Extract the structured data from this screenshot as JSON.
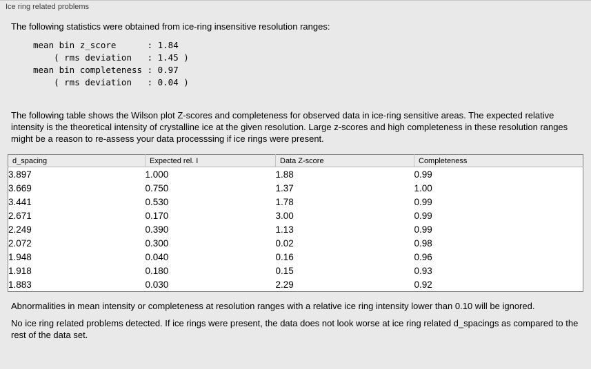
{
  "panel": {
    "title": "Ice ring related problems"
  },
  "intro": {
    "text": "The following statistics were obtained from ice-ring insensitive resolution ranges:"
  },
  "stats": {
    "lines": [
      "mean bin z_score      : 1.84",
      "    ( rms deviation   : 1.45 )",
      "mean bin completeness : 0.97",
      "    ( rms deviation   : 0.04 )"
    ]
  },
  "description": {
    "text": "The following table shows the Wilson plot Z-scores and completeness for observed data in ice-ring sensitive areas. The expected relative intensity is the theoretical intensity of crystalline ice at the given resolution. Large z-scores and high completeness in these resolution ranges might be a reason to re-assess your data processsing if ice rings were present."
  },
  "table": {
    "columns": [
      "d_spacing",
      "Expected rel. I",
      "Data Z-score",
      "Completeness"
    ],
    "rows": [
      [
        "3.897",
        "1.000",
        "1.88",
        "0.99"
      ],
      [
        "3.669",
        "0.750",
        "1.37",
        "1.00"
      ],
      [
        "3.441",
        "0.530",
        "1.78",
        "0.99"
      ],
      [
        "2.671",
        "0.170",
        "3.00",
        "0.99"
      ],
      [
        "2.249",
        "0.390",
        "1.13",
        "0.99"
      ],
      [
        "2.072",
        "0.300",
        "0.02",
        "0.98"
      ],
      [
        "1.948",
        "0.040",
        "0.16",
        "0.96"
      ],
      [
        "1.918",
        "0.180",
        "0.15",
        "0.93"
      ],
      [
        "1.883",
        "0.030",
        "2.29",
        "0.92"
      ]
    ]
  },
  "note": {
    "text": "Abnormalities in mean intensity or completeness at resolution ranges with a relative ice ring intensity lower than 0.10 will be ignored."
  },
  "conclusion": {
    "text": "No ice ring related problems detected. If ice rings were present, the data does not look worse at ice ring related d_spacings as compared to the rest of the data set."
  },
  "colors": {
    "page_bg": "#e9e9e9",
    "table_bg": "#ffffff",
    "table_border": "#828282"
  }
}
